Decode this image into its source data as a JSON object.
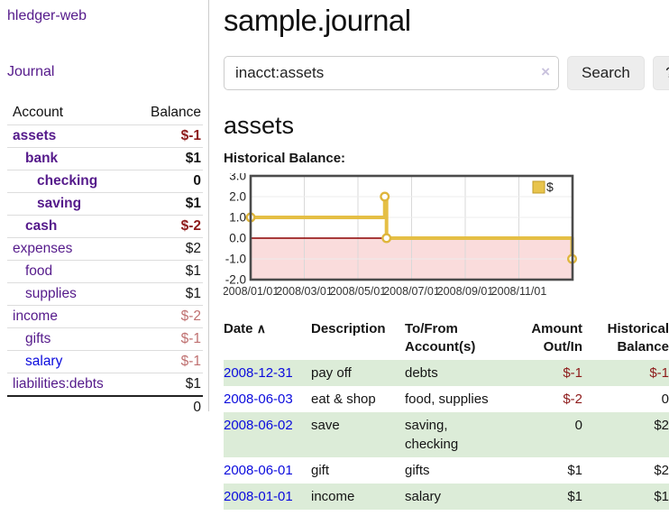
{
  "brand": "hledger-web",
  "nav": {
    "journal": "Journal"
  },
  "sidebar": {
    "header": {
      "account": "Account",
      "balance": "Balance"
    },
    "accounts": [
      {
        "name": "assets",
        "balance": "$-1"
      },
      {
        "name": "bank",
        "balance": "$1"
      },
      {
        "name": "checking",
        "balance": "0"
      },
      {
        "name": "saving",
        "balance": "$1"
      },
      {
        "name": "cash",
        "balance": "$-2"
      },
      {
        "name": "expenses",
        "balance": "$2"
      },
      {
        "name": "food",
        "balance": "$1"
      },
      {
        "name": "supplies",
        "balance": "$1"
      },
      {
        "name": "income",
        "balance": "$-2"
      },
      {
        "name": "gifts",
        "balance": "$-1"
      },
      {
        "name": "salary",
        "balance": "$-1"
      },
      {
        "name": "liabilities:debts",
        "balance": "$1"
      }
    ],
    "total": "0"
  },
  "main": {
    "title": "sample.journal",
    "search": {
      "value": "inacct:assets",
      "clear_icon": "×",
      "button": "Search",
      "help_button": "?"
    },
    "account_title": "assets",
    "chart_label": "Historical Balance:"
  },
  "chart_data": {
    "type": "line",
    "subtype": "step-after",
    "title": "Historical Balance",
    "series": [
      {
        "name": "$",
        "points": [
          {
            "date": "2008-01-01",
            "value": 1
          },
          {
            "date": "2008-06-01",
            "value": 2
          },
          {
            "date": "2008-06-03",
            "value": 0
          },
          {
            "date": "2008-12-31",
            "value": -1
          }
        ]
      }
    ],
    "ylim": [
      -2.0,
      3.0
    ],
    "y_ticks": [
      3.0,
      2.0,
      1.0,
      0.0,
      -1.0,
      -2.0
    ],
    "x_tick_labels": [
      "2008/01/01",
      "2008/03/01",
      "2008/05/01",
      "2008/07/01",
      "2008/09/01",
      "2008/11/01"
    ],
    "x_tick_months": [
      0,
      2,
      4,
      6,
      8,
      10
    ],
    "x_range_months": 12,
    "legend": {
      "label": "$",
      "position": "top-right"
    },
    "grid": true,
    "colors": {
      "line": "#e5bf45",
      "marker_fill": "#ffffff",
      "marker_stroke": "#dfb63c",
      "legend_fill": "#e8c44d",
      "legend_border": "#c19b27",
      "zero_line": "#8b0000",
      "below_zero_fill": "#fadcdc",
      "border": "#4b4b4b",
      "grid_v": "#d9d9d9",
      "grid_h": "#ececec"
    }
  },
  "transactions": {
    "headers": {
      "date": "Date",
      "sort_icon": "∧",
      "description": "Description",
      "tofrom": "To/From Account(s)",
      "amount": "Amount Out/In",
      "balance": "Historical Balance"
    },
    "rows": [
      {
        "date": "2008-12-31",
        "description": "pay off",
        "accounts": "debts",
        "amount": "$-1",
        "balance": "$-1"
      },
      {
        "date": "2008-06-03",
        "description": "eat & shop",
        "accounts": "food, supplies",
        "amount": "$-2",
        "balance": "0"
      },
      {
        "date": "2008-06-02",
        "description": "save",
        "accounts": "saving, checking",
        "amount": "0",
        "balance": "$2"
      },
      {
        "date": "2008-06-01",
        "description": "gift",
        "accounts": "gifts",
        "amount": "$1",
        "balance": "$2"
      },
      {
        "date": "2008-01-01",
        "description": "income",
        "accounts": "salary",
        "amount": "$1",
        "balance": "$1"
      }
    ]
  }
}
